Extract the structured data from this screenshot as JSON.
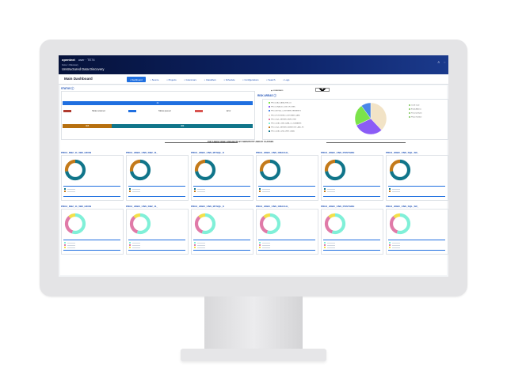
{
  "header": {
    "brand": "opentext",
    "user": "user · TE74",
    "breadcrumb": "home > Discovery",
    "app_title": "Unstructured Data Discovery"
  },
  "nav": {
    "page_title": "Main Dashboard",
    "tabs": [
      {
        "label": "Dashboard",
        "icon": "dashboard-icon",
        "active": true
      },
      {
        "label": "Source",
        "icon": "source-icon",
        "active": false
      },
      {
        "label": "Projects",
        "icon": "folder-icon",
        "active": false
      },
      {
        "label": "Grammars",
        "icon": "grammar-icon",
        "active": false
      },
      {
        "label": "Classifiers",
        "icon": "classifier-icon",
        "active": false
      },
      {
        "label": "Schedule",
        "icon": "calendar-icon",
        "active": false
      },
      {
        "label": "Configurations",
        "icon": "settings-icon",
        "active": false
      },
      {
        "label": "Search",
        "icon": "search-icon",
        "active": false
      },
      {
        "label": "Logs",
        "icon": "log-icon",
        "active": false
      }
    ]
  },
  "status": {
    "title": "STATUS",
    "total_bar_label": "24",
    "legend": [
      {
        "label": "Tables scanned",
        "color": "#b03a2e"
      },
      {
        "label": "Tables queued",
        "color": "#1f6fe0"
      },
      {
        "label": "Error",
        "color": "#d9534f"
      }
    ],
    "split": {
      "left_label": "965",
      "right_label": "###",
      "left_fraction": 0.26,
      "left_color": "#b7700f",
      "right_color": "#10758a"
    }
  },
  "risk": {
    "title": "RISK AREAS",
    "filter_label": "GRAMMARS",
    "select_value": "Select a...",
    "left_legend": [
      "PROJ_DB2_DATA_RISK_01",
      "PROJ_ORACLE_CUST_PII_RISK",
      "PROJ_MYSQL_CUSTOMER_PAYMENTS",
      "PROJ_POSTGRES_CUSTOMER_DATA",
      "PROJ_SQL_SERVER_EMPLOYEE",
      "PROJ_JDBC_GEN_DATA_CC_NUMBERS",
      "PROJ_SQL_SERVER_INVENTORY_AND_PII",
      "PROJ_JDBC_UNS_VERT_DATA"
    ],
    "right_legend": [
      "Credit Card",
      "Email Address",
      "Personal Name",
      "Phone Number"
    ],
    "slices": [
      {
        "value": 38,
        "color": "#f2e3c6"
      },
      {
        "value": 30,
        "color": "#8b5cf6"
      },
      {
        "value": 22,
        "color": "#7be34a"
      },
      {
        "value": 10,
        "color": "#4a86e8"
      }
    ]
  },
  "top_projects": {
    "heading": "TOP 6 MOST RISKY PROJECTS BY SENSITIVITY AND BY CLASSES",
    "sensitivity": [
      "PROJ_DB2_11_5B6_HDVB",
      "PROJ_JDBC_UNS_DB2_11_",
      "PROJ_JDBC_UNS_MYSQL_8",
      "PROJ_JDBC_UNS_ORACLE_",
      "PROJ_JDBC_UNS_POSTGRE",
      "PROJ_JDBC_UNS_SQL_SR_"
    ],
    "classes": [
      "PROJ_DB2_11_5B6_HDVB",
      "PROJ_JDBC_UNS_DB2_11_",
      "PROJ_JDBC_UNS_MYSQL_8",
      "PROJ_JDBC_UNS_ORACLE_",
      "PROJ_JDBC_UNS_POSTGRE",
      "PROJ_JDBC_UNS_SQL_SR_"
    ],
    "sensitivity_colors": [
      "#10758a",
      "#c47a1a"
    ],
    "sensitivity_fraction": 0.72,
    "classes_colors": [
      "#80f0d8",
      "#e07aa8",
      "#f2e04a"
    ],
    "classes_fractions": [
      0.55,
      0.33,
      0.12
    ]
  }
}
